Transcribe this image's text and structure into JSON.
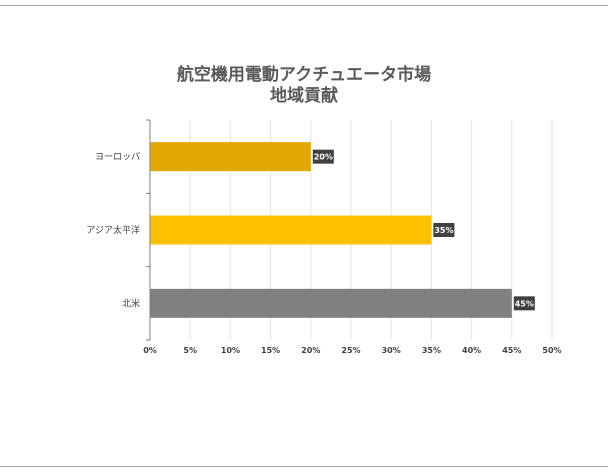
{
  "chart_data": {
    "type": "bar",
    "orientation": "horizontal",
    "title_lines": [
      "航空機用電動アクチュエータ市場",
      "地域貢献"
    ],
    "categories": [
      "ヨーロッパ",
      "アジア太平洋",
      "北米"
    ],
    "values": [
      20,
      35,
      45
    ],
    "colors": [
      "#e0a800",
      "#ffc000",
      "#808080"
    ],
    "data_labels": [
      "20%",
      "35%",
      "45%"
    ],
    "x_ticks": [
      "0%",
      "5%",
      "10%",
      "15%",
      "20%",
      "25%",
      "30%",
      "35%",
      "40%",
      "45%",
      "50%"
    ],
    "xlim": [
      0,
      50
    ],
    "grid": true,
    "legend": "none"
  }
}
